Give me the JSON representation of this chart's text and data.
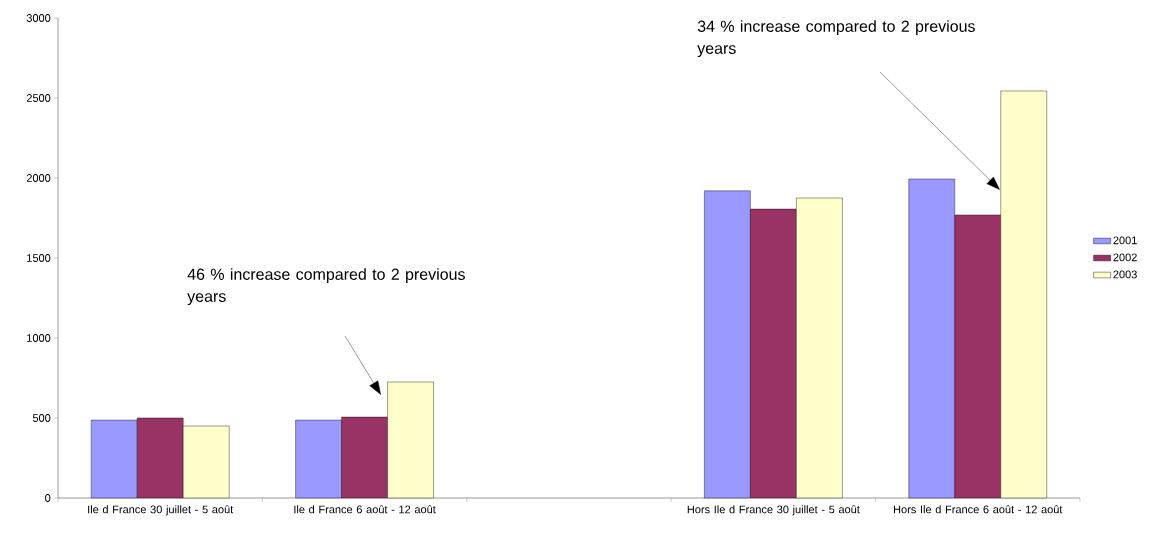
{
  "chart_data": {
    "type": "bar",
    "categories": [
      "Ile d France 30 juillet - 5 août",
      "Ile d France  6 août - 12 août",
      null,
      "Hors Ile d France  30 juillet - 5 août",
      "Hors Ile d France  6 août - 12 août"
    ],
    "series": [
      {
        "name": "2001",
        "color": "#9999ff",
        "values": [
          487,
          487,
          null,
          1920,
          1994
        ]
      },
      {
        "name": "2002",
        "color": "#993366",
        "values": [
          500,
          506,
          null,
          1806,
          1769
        ]
      },
      {
        "name": "2003",
        "color": "#ffffcc",
        "values": [
          450,
          725,
          null,
          1875,
          2544
        ]
      }
    ],
    "ylim": [
      0,
      3000
    ],
    "yticks": [
      0,
      500,
      1000,
      1500,
      2000,
      2500,
      3000
    ],
    "grid": false,
    "legend": "right",
    "annotations": [
      "46 % increase compared to 2 previous years",
      "34 % increase compared to 2 previous years"
    ]
  }
}
